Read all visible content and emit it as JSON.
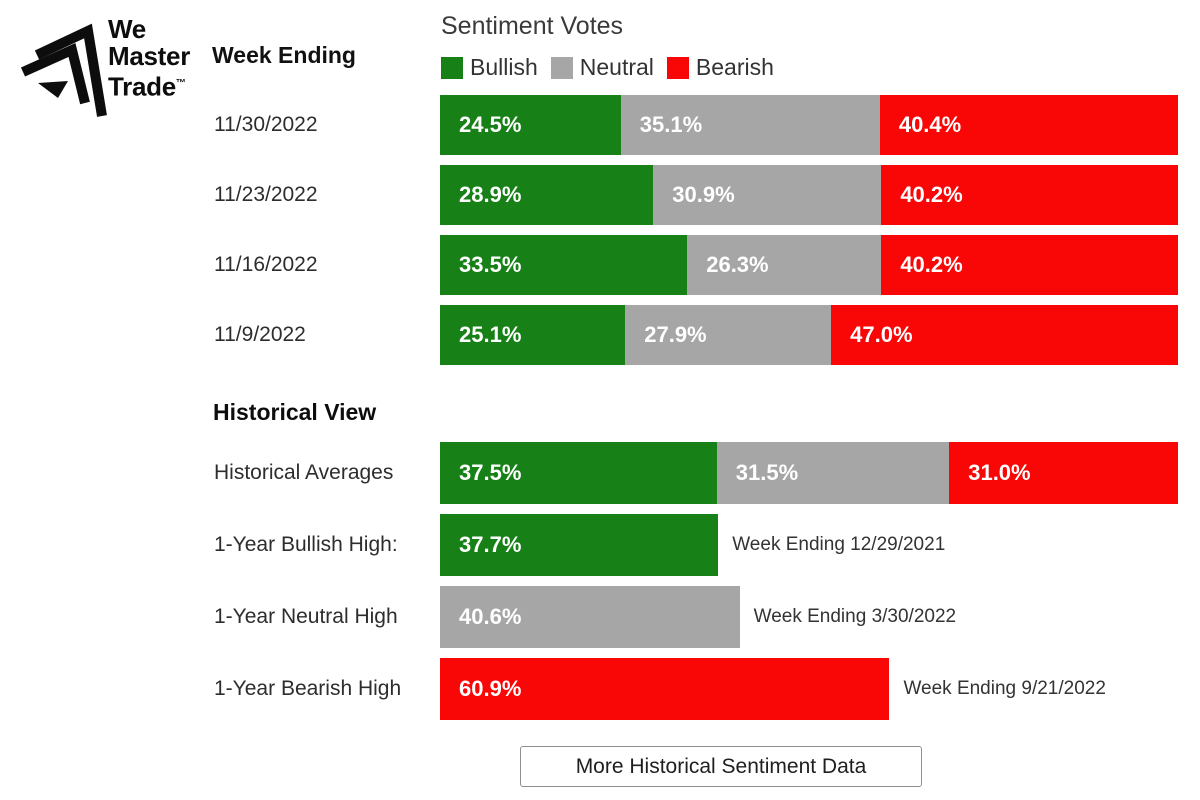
{
  "logo": {
    "line1": "We",
    "line2": "Master",
    "line3": "Trade",
    "trademark": "™"
  },
  "header": {
    "week_ending_label": "Week Ending"
  },
  "button": {
    "label": "More Historical Sentiment Data"
  },
  "chart_data": {
    "type": "bar",
    "variant": "horizontal-stacked",
    "title": "Sentiment Votes",
    "legend_position": "top",
    "unit": "%",
    "scale_max": 100,
    "legend": [
      {
        "name": "Bullish",
        "key": "bullish",
        "color": "#178017"
      },
      {
        "name": "Neutral",
        "key": "neutral",
        "color": "#a6a6a6"
      },
      {
        "name": "Bearish",
        "key": "bearish",
        "color": "#f90606"
      }
    ],
    "categories": [
      "11/30/2022",
      "11/23/2022",
      "11/16/2022",
      "11/9/2022"
    ],
    "weekly": [
      {
        "date": "11/30/2022",
        "bullish": 24.5,
        "neutral": 35.1,
        "bearish": 40.4
      },
      {
        "date": "11/23/2022",
        "bullish": 28.9,
        "neutral": 30.9,
        "bearish": 40.2
      },
      {
        "date": "11/16/2022",
        "bullish": 33.5,
        "neutral": 26.3,
        "bearish": 40.2
      },
      {
        "date": "11/9/2022",
        "bullish": 25.1,
        "neutral": 27.9,
        "bearish": 47.0
      }
    ],
    "historical_section": {
      "title": "Historical View",
      "averages": {
        "label": "Historical Averages",
        "bullish": 37.5,
        "neutral": 31.5,
        "bearish": 31.0
      },
      "highs": [
        {
          "label": "1-Year Bullish High:",
          "series": "bullish",
          "value": 37.7,
          "annotation": "Week Ending 12/29/2021"
        },
        {
          "label": "1-Year Neutral High",
          "series": "neutral",
          "value": 40.6,
          "annotation": "Week Ending 3/30/2022"
        },
        {
          "label": "1-Year Bearish High",
          "series": "bearish",
          "value": 60.9,
          "annotation": "Week Ending 9/21/2022"
        }
      ]
    }
  }
}
